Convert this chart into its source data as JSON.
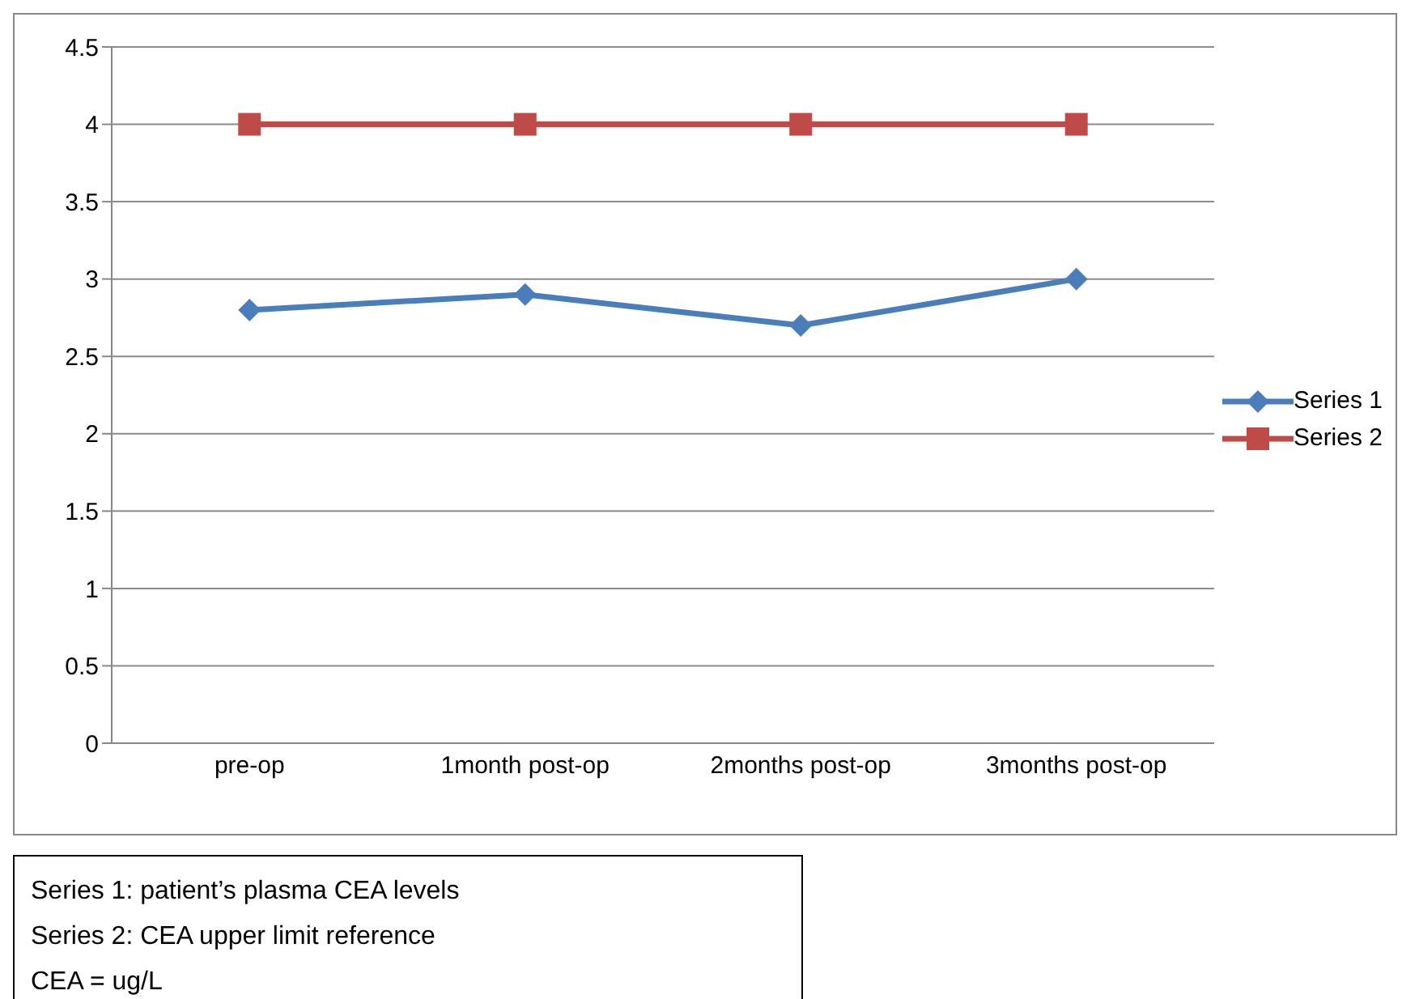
{
  "chart_data": {
    "type": "line",
    "categories": [
      "pre-op",
      "1month post-op",
      "2months post-op",
      "3months post-op"
    ],
    "series": [
      {
        "name": "Series 1",
        "color": "#4a7ebb",
        "values": [
          2.8,
          2.9,
          2.7,
          3.0
        ],
        "marker": "diamond"
      },
      {
        "name": "Series 2",
        "color": "#be4b48",
        "values": [
          4,
          4,
          4,
          4
        ],
        "marker": "square"
      }
    ],
    "ylim": [
      0,
      4.5
    ],
    "yticks": [
      0,
      0.5,
      1,
      1.5,
      2,
      2.5,
      3,
      3.5,
      4,
      4.5
    ],
    "grid": "y",
    "legend": "right",
    "annotations": [
      "Series 1: patient’s plasma CEA levels",
      "Series 2:  CEA   upper limit reference",
      "CEA = ug/L"
    ]
  }
}
